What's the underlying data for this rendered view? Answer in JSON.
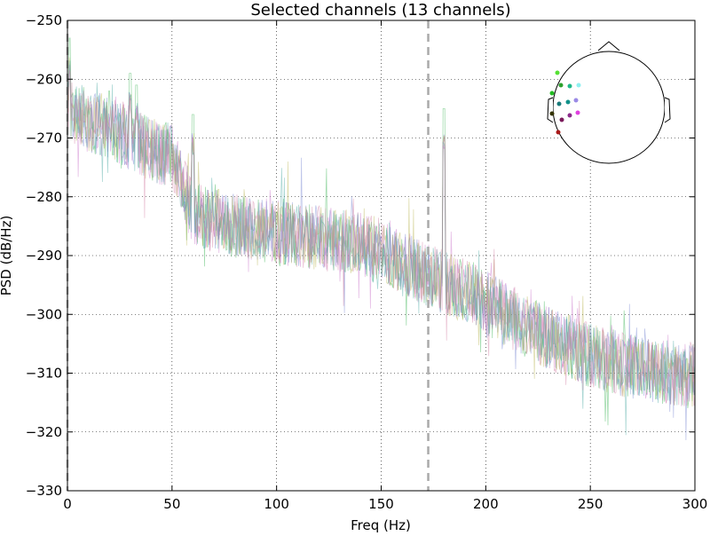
{
  "chart_data": {
    "type": "line",
    "title": "Selected channels (13 channels)",
    "xlabel": "Freq (Hz)",
    "ylabel": "PSD (dB/Hz)",
    "xlim": [
      0,
      300
    ],
    "ylim": [
      -330,
      -250
    ],
    "x_ticks": [
      0,
      50,
      100,
      150,
      200,
      250,
      300
    ],
    "x_tick_labels": [
      "0",
      "50",
      "100",
      "150",
      "200",
      "250",
      "300"
    ],
    "y_ticks": [
      -330,
      -320,
      -310,
      -300,
      -290,
      -280,
      -270,
      -260,
      -250
    ],
    "y_tick_labels": [
      "−330",
      "−320",
      "−310",
      "−300",
      "−290",
      "−280",
      "−270",
      "−260",
      "−250"
    ],
    "grid": true,
    "grid_style": "dotted",
    "vlines": [
      {
        "x": 0,
        "style": "dashed",
        "color": "#aaaaaa"
      },
      {
        "x": 172.5,
        "style": "dashed",
        "color": "#aaaaaa"
      }
    ],
    "trend": {
      "x": [
        0,
        10,
        20,
        30,
        40,
        50,
        60,
        70,
        80,
        90,
        100,
        110,
        120,
        130,
        140,
        150,
        160,
        170,
        180,
        190,
        200,
        210,
        220,
        230,
        240,
        250,
        260,
        270,
        280,
        290,
        300
      ],
      "y": [
        -265,
        -267,
        -268,
        -270,
        -272,
        -273,
        -283,
        -284,
        -285,
        -285.5,
        -286,
        -286.5,
        -287,
        -287.5,
        -288,
        -289,
        -291,
        -293,
        -294.5,
        -296,
        -298,
        -300,
        -302,
        -304,
        -305.5,
        -307,
        -308,
        -309,
        -309.5,
        -310,
        -310.5
      ]
    },
    "spikes": [
      {
        "x": 1,
        "y": -253
      },
      {
        "x": 20,
        "y": -262
      },
      {
        "x": 30,
        "y": -259
      },
      {
        "x": 33,
        "y": -261
      },
      {
        "x": 60,
        "y": -266
      },
      {
        "x": 70,
        "y": -280
      },
      {
        "x": 180,
        "y": -265
      }
    ],
    "series": [
      {
        "color": "#2fb04a"
      },
      {
        "color": "#c86fc8"
      },
      {
        "color": "#6f7fcf"
      },
      {
        "color": "#b8b450"
      },
      {
        "color": "#44a6a0"
      },
      {
        "color": "#d07aa0"
      }
    ],
    "inset_head": {
      "sensors": [
        {
          "color": "#55e033"
        },
        {
          "color": "#2ca02c"
        },
        {
          "color": "#1fb88a"
        },
        {
          "color": "#8ff0f0"
        },
        {
          "color": "#22bb22"
        },
        {
          "color": "#1a7a7a"
        },
        {
          "color": "#11918a"
        },
        {
          "color": "#9a8ae6"
        },
        {
          "color": "#333300"
        },
        {
          "color": "#8b2a8b"
        },
        {
          "color": "#e040e0"
        },
        {
          "color": "#7a1a5a"
        },
        {
          "color": "#aa1a1a"
        }
      ]
    }
  }
}
